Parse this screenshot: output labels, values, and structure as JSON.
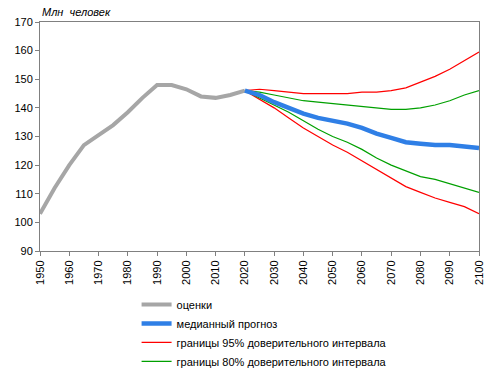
{
  "chart_data": {
    "type": "line",
    "y_label": "Млн  человек",
    "x": [
      1950,
      1955,
      1960,
      1965,
      1970,
      1975,
      1980,
      1985,
      1990,
      1995,
      2000,
      2005,
      2010,
      2015,
      2020,
      2025,
      2030,
      2035,
      2040,
      2045,
      2050,
      2055,
      2060,
      2065,
      2070,
      2075,
      2080,
      2085,
      2090,
      2095,
      2100
    ],
    "series": [
      {
        "name": "оценки",
        "color": "#a6a6a6",
        "line_style": "solid",
        "values": [
          103,
          112,
          120,
          127,
          130.5,
          134,
          138.5,
          143.5,
          148,
          148,
          146.5,
          144,
          143.5,
          144.5,
          146,
          null,
          null,
          null,
          null,
          null,
          null,
          null,
          null,
          null,
          null,
          null,
          null,
          null,
          null,
          null,
          null
        ]
      },
      {
        "name": "медианный прогноз",
        "color": "#2f7fe6",
        "line_style": "solid",
        "values": [
          null,
          null,
          null,
          null,
          null,
          null,
          null,
          null,
          null,
          null,
          null,
          null,
          null,
          null,
          146,
          144.5,
          142,
          140,
          138,
          136.5,
          135.5,
          134.5,
          133,
          131,
          129.5,
          128,
          127.5,
          127,
          127,
          126.5,
          126
        ]
      },
      {
        "name": "границы 95% доверительного интервала",
        "color": "#ff0000",
        "line_style": "solid",
        "values": [
          null,
          null,
          null,
          null,
          null,
          null,
          null,
          null,
          null,
          null,
          null,
          null,
          null,
          null,
          146,
          146.5,
          146,
          145.5,
          145,
          145,
          145,
          145,
          145.5,
          145.5,
          146,
          147,
          149,
          151,
          153.5,
          156.5,
          159.5
        ]
      },
      {
        "name": "границы 95% доверительного интервала",
        "color": "#ff0000",
        "line_style": "solid",
        "values": [
          null,
          null,
          null,
          null,
          null,
          null,
          null,
          null,
          null,
          null,
          null,
          null,
          null,
          null,
          146,
          143,
          140,
          136.5,
          133,
          130,
          127,
          124.5,
          121.5,
          118.5,
          115.5,
          112.5,
          110.5,
          108.5,
          107,
          105.5,
          103
        ]
      },
      {
        "name": "границы 80% доверительного интервала",
        "color": "#00a000",
        "line_style": "solid",
        "values": [
          null,
          null,
          null,
          null,
          null,
          null,
          null,
          null,
          null,
          null,
          null,
          null,
          null,
          null,
          146,
          145.5,
          144.5,
          143.5,
          142.5,
          142,
          141.5,
          141,
          140.5,
          140,
          139.5,
          139.5,
          140,
          141,
          142.5,
          144.5,
          146
        ]
      },
      {
        "name": "границы 80% доверительного интервала",
        "color": "#00a000",
        "line_style": "solid",
        "values": [
          null,
          null,
          null,
          null,
          null,
          null,
          null,
          null,
          null,
          null,
          null,
          null,
          null,
          null,
          146,
          143.5,
          141,
          138.5,
          135.5,
          132.5,
          130,
          128,
          125.5,
          122.5,
          120,
          118,
          116,
          115,
          113.5,
          112,
          110.5
        ]
      }
    ],
    "xlim": [
      1950,
      2100
    ],
    "xticks": [
      1950,
      1960,
      1970,
      1980,
      1990,
      2000,
      2010,
      2020,
      2030,
      2040,
      2050,
      2060,
      2070,
      2080,
      2090,
      2100
    ],
    "ylim": [
      90,
      170
    ],
    "yticks": [
      90,
      100,
      110,
      120,
      130,
      140,
      150,
      160,
      170
    ],
    "grid": false,
    "legend": "bottom"
  }
}
